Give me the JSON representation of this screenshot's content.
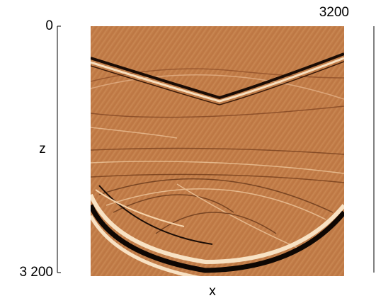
{
  "chart_data": {
    "type": "image",
    "xlabel": "x",
    "ylabel": "z",
    "xlim": [
      0,
      3200
    ],
    "ylim": [
      0,
      3200
    ],
    "xticks": [
      3200
    ],
    "yticks": [
      0,
      {
        "value": 3200,
        "label": "3 200"
      }
    ]
  }
}
